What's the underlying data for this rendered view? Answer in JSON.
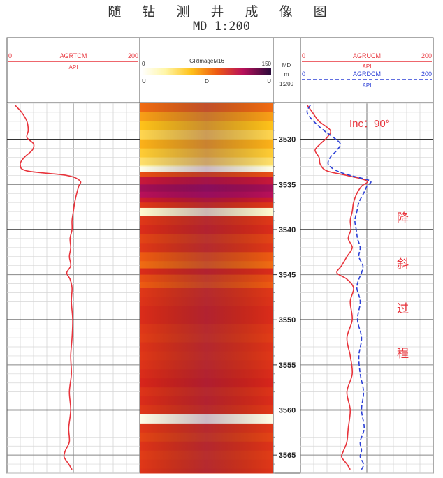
{
  "header": {
    "title": "随 钻 测 井 成 像 图",
    "subtitle": "MD 1:200"
  },
  "tracks": {
    "left": {
      "curve": "AGRTCM",
      "unit": "API",
      "min": "0",
      "max": "200",
      "color": "#e8333b"
    },
    "image": {
      "name": "GRImageM16",
      "min": "0",
      "max": "150",
      "labels": [
        "U",
        "D",
        "U"
      ]
    },
    "depth": {
      "label": "MD",
      "unit": "m",
      "scale": "1:200"
    },
    "right": {
      "curves": [
        {
          "name": "AGRUCM",
          "unit": "API",
          "min": "0",
          "max": "200",
          "color": "#e8333b"
        },
        {
          "name": "AGRDCM",
          "unit": "API",
          "min": "0",
          "max": "200",
          "color": "#2b3fd6"
        }
      ]
    }
  },
  "annotations": {
    "inclination": "Inc：90°",
    "process": [
      "降",
      "斜",
      "过",
      "程"
    ]
  },
  "chart_data": {
    "type": "line",
    "depth_range": [
      3526,
      3567
    ],
    "depth_ticks": [
      3530,
      3535,
      3540,
      3545,
      3550,
      3555,
      3560,
      3565
    ],
    "series": [
      {
        "name": "AGRTCM",
        "track": "left",
        "depth": [
          3526.2,
          3527.0,
          3528.0,
          3529.0,
          3529.8,
          3530.5,
          3531.2,
          3532.0,
          3532.8,
          3533.5,
          3534.0,
          3534.6,
          3535.2,
          3536.0,
          3537.0,
          3538.0,
          3539.0,
          3540.0,
          3541.0,
          3542.0,
          3543.0,
          3544.0,
          3544.8,
          3545.5,
          3546.5,
          3548.0,
          3550.0,
          3552.0,
          3554.0,
          3556.0,
          3558.0,
          3560.0,
          3562.0,
          3563.5,
          3564.5,
          3565.2,
          3566.0,
          3566.6
        ],
        "values": [
          12,
          22,
          30,
          32,
          30,
          40,
          38,
          26,
          20,
          30,
          90,
          110,
          108,
          105,
          102,
          100,
          98,
          98,
          95,
          96,
          94,
          96,
          90,
          95,
          98,
          97,
          99,
          98,
          96,
          97,
          94,
          96,
          93,
          94,
          88,
          86,
          93,
          98
        ]
      },
      {
        "name": "AGRUCM",
        "track": "right",
        "depth": [
          3526.2,
          3527.0,
          3528.0,
          3529.0,
          3529.8,
          3530.5,
          3531.2,
          3532.0,
          3532.8,
          3533.5,
          3534.0,
          3534.6,
          3535.2,
          3536.0,
          3537.0,
          3538.0,
          3539.0,
          3540.0,
          3541.0,
          3542.0,
          3543.0,
          3544.0,
          3544.8,
          3545.5,
          3546.5,
          3548.0,
          3550.0,
          3552.0,
          3554.0,
          3556.0,
          3558.0,
          3560.0,
          3562.0,
          3563.5,
          3564.5,
          3565.2,
          3566.0,
          3566.6
        ],
        "values": [
          10,
          18,
          28,
          45,
          40,
          30,
          22,
          28,
          30,
          40,
          70,
          100,
          92,
          85,
          80,
          78,
          75,
          76,
          72,
          78,
          70,
          62,
          55,
          70,
          80,
          75,
          78,
          70,
          75,
          78,
          70,
          75,
          72,
          70,
          65,
          62,
          70,
          75
        ]
      },
      {
        "name": "AGRDCM",
        "track": "right",
        "depth": [
          3526.2,
          3527.0,
          3528.0,
          3529.0,
          3529.8,
          3530.5,
          3531.2,
          3532.0,
          3532.8,
          3533.5,
          3534.0,
          3534.6,
          3535.2,
          3536.0,
          3537.0,
          3538.0,
          3539.0,
          3540.0,
          3541.0,
          3542.0,
          3543.0,
          3544.0,
          3544.8,
          3545.5,
          3546.5,
          3548.0,
          3550.0,
          3552.0,
          3554.0,
          3556.0,
          3558.0,
          3560.0,
          3562.0,
          3563.5,
          3564.5,
          3565.2,
          3566.0,
          3566.6
        ],
        "values": [
          15,
          10,
          20,
          35,
          50,
          60,
          55,
          45,
          42,
          55,
          75,
          105,
          100,
          95,
          88,
          85,
          82,
          84,
          86,
          90,
          88,
          94,
          92,
          88,
          85,
          90,
          86,
          92,
          88,
          90,
          95,
          92,
          96,
          90,
          92,
          90,
          95,
          92
        ]
      }
    ],
    "image_bands": {
      "depth": [
        3526.0,
        3527.0,
        3528.0,
        3529.0,
        3530.0,
        3531.0,
        3532.0,
        3532.8,
        3533.0,
        3533.6,
        3534.2,
        3535.0,
        3535.8,
        3536.5,
        3537.0,
        3537.6,
        3538.5,
        3539.5,
        3540.5,
        3541.5,
        3542.5,
        3543.5,
        3544.3,
        3545.0,
        3545.8,
        3546.5,
        3547.5,
        3548.5,
        3549.5,
        3550.5,
        3551.5,
        3552.5,
        3553.5,
        3554.5,
        3555.5,
        3556.5,
        3557.5,
        3558.5,
        3559.5,
        3560.5,
        3561.5,
        3562.5,
        3563.5,
        3564.5,
        3565.5,
        3566.5
      ],
      "values": [
        70,
        55,
        45,
        35,
        50,
        40,
        30,
        20,
        5,
        80,
        110,
        125,
        120,
        105,
        90,
        10,
        90,
        95,
        85,
        90,
        75,
        70,
        95,
        80,
        75,
        90,
        92,
        95,
        95,
        90,
        88,
        92,
        90,
        92,
        95,
        98,
        92,
        95,
        90,
        5,
        90,
        85,
        92,
        88,
        90,
        92
      ]
    },
    "grid": true
  }
}
